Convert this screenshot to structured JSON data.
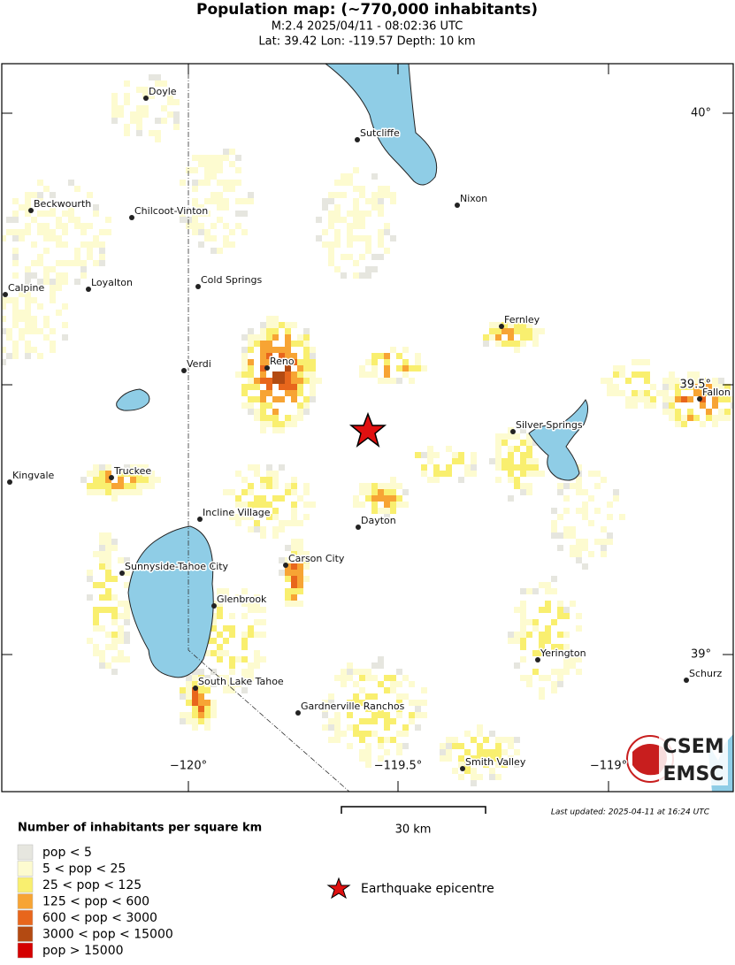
{
  "header": {
    "title": "Population map: (~770,000 inhabitants)",
    "subtitle": "M:2.4 2025/04/11 - 08:02:36 UTC",
    "location": "Lat: 39.42 Lon: -119.57 Depth: 10 km"
  },
  "map": {
    "towns": [
      "Doyle",
      "Sutcliffe",
      "Nixon",
      "Beckwourth",
      "Chilcoot-Vinton",
      "Calpine",
      "Loyalton",
      "Cold Springs",
      "Fernley",
      "Verdi",
      "Reno",
      "Fallon",
      "Silver Springs",
      "Kingvale",
      "Truckee",
      "Incline Village",
      "Dayton",
      "Sunnyside-Tahoe City",
      "Carson City",
      "Glenbrook",
      "Yerington",
      "Schurz",
      "South Lake Tahoe",
      "Gardnerville Ranchos",
      "Smith Valley"
    ],
    "lat_labels": [
      "40°",
      "39.5°",
      "39°"
    ],
    "lon_labels": [
      "−120°",
      "−119.5°",
      "−119°"
    ],
    "scale_label": "30 km",
    "last_updated": "Last updated: 2025-04-11 at 16:24 UTC",
    "logo": [
      "CSEM",
      "EMSC"
    ]
  },
  "legend": {
    "title": "Number of inhabitants per square km",
    "items": [
      {
        "label": "pop < 5",
        "color": "#e6e6df"
      },
      {
        "label": "5 < pop < 25",
        "color": "#fdfbd0"
      },
      {
        "label": "25 < pop < 125",
        "color": "#f9ef6f"
      },
      {
        "label": "125 < pop < 600",
        "color": "#f7a434"
      },
      {
        "label": "600 < pop < 3000",
        "color": "#e8661c"
      },
      {
        "label": "3000 < pop < 15000",
        "color": "#b34a12"
      },
      {
        "label": "pop > 15000",
        "color": "#d40000"
      }
    ],
    "epicentre": "Earthquake epicentre"
  }
}
